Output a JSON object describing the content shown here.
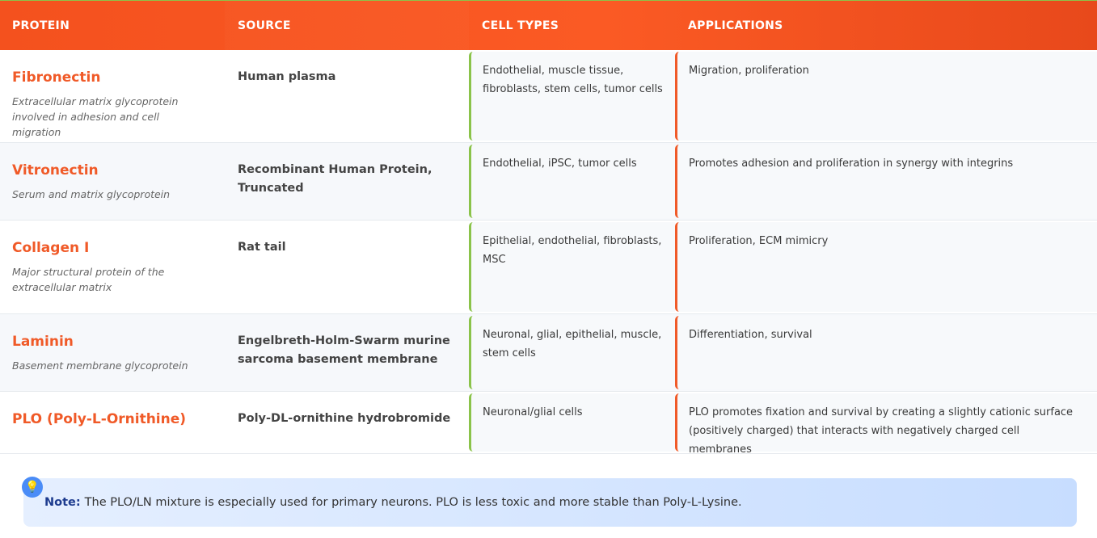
{
  "headers": {
    "protein": "PROTEIN",
    "source": "SOURCE",
    "cell_types": "CELL TYPES",
    "applications": "APPLICATIONS"
  },
  "rows": [
    {
      "name": "Fibronectin",
      "desc": "Extracellular matrix glycoprotein involved in adhesion and cell migration",
      "source": "Human plasma",
      "cell_types": "Endothelial, muscle tissue, fibroblasts, stem cells, tumor cells",
      "applications": "Migration, proliferation"
    },
    {
      "name": "Vitronectin",
      "desc": "Serum and matrix glycoprotein",
      "source": "Recombinant Human Protein, Truncated",
      "cell_types": "Endothelial, iPSC, tumor cells",
      "applications": "Promotes adhesion and proliferation in synergy with integrins"
    },
    {
      "name": "Collagen I",
      "desc": "Major structural protein of the extracellular matrix",
      "source": "Rat tail",
      "cell_types": "Epithelial, endothelial, fibroblasts, MSC",
      "applications": "Proliferation, ECM mimicry"
    },
    {
      "name": "Laminin",
      "desc": "Basement membrane glycoprotein",
      "source": "Engelbreth-Holm-Swarm murine sarcoma basement membrane",
      "cell_types": "Neuronal, glial, epithelial, muscle, stem cells",
      "applications": "Differentiation, survival"
    },
    {
      "name": "PLO (Poly-L-Ornithine)",
      "desc": "",
      "source": "Poly-DL-ornithine hydrobromide",
      "cell_types": "Neuronal/glial cells",
      "applications": "PLO promotes fixation and survival by creating a slightly cationic surface (positively charged) that interacts with negatively charged cell membranes"
    }
  ],
  "note": {
    "label": "Note:",
    "text": "The PLO/LN mixture is especially used for primary neurons. PLO is less toxic and more stable than Poly-L-Lysine.",
    "icon": "lightbulb-icon"
  },
  "colors": {
    "accent": "#f05a28",
    "green": "#8bc34a",
    "note_label": "#1e3c8f"
  }
}
